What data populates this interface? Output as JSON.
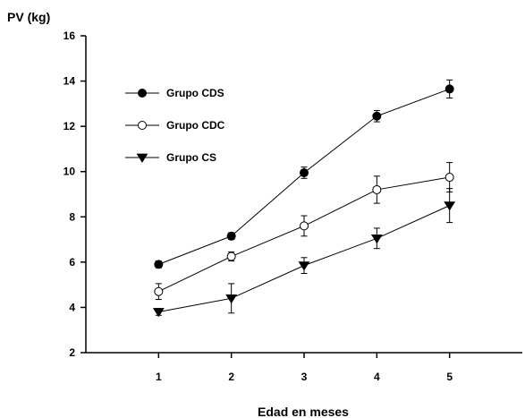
{
  "chart_data": {
    "type": "line",
    "xlabel": "Edad en meses",
    "ylabel": "PV (kg)",
    "x": [
      1,
      2,
      3,
      4,
      5
    ],
    "xlim": [
      0,
      6
    ],
    "ylim": [
      2,
      16
    ],
    "x_ticks": [
      1,
      2,
      3,
      4,
      5
    ],
    "y_ticks": [
      2,
      4,
      6,
      8,
      10,
      12,
      14,
      16
    ],
    "grid": false,
    "legend_position": "top-left",
    "series": [
      {
        "name": "Grupo CDS",
        "marker": "filled-circle",
        "color": "#000000",
        "values": [
          5.9,
          7.15,
          9.95,
          12.45,
          13.65
        ],
        "errors": [
          0.15,
          0.15,
          0.25,
          0.25,
          0.4
        ]
      },
      {
        "name": "Grupo CDC",
        "marker": "open-circle",
        "color": "#000000",
        "values": [
          4.7,
          6.25,
          7.6,
          9.2,
          9.75
        ],
        "errors": [
          0.35,
          0.2,
          0.45,
          0.6,
          0.65
        ]
      },
      {
        "name": "Grupo CS",
        "marker": "filled-triangle-down",
        "color": "#000000",
        "values": [
          3.8,
          4.4,
          5.85,
          7.05,
          8.5
        ],
        "errors": [
          0.15,
          0.65,
          0.35,
          0.45,
          0.75
        ]
      }
    ]
  }
}
